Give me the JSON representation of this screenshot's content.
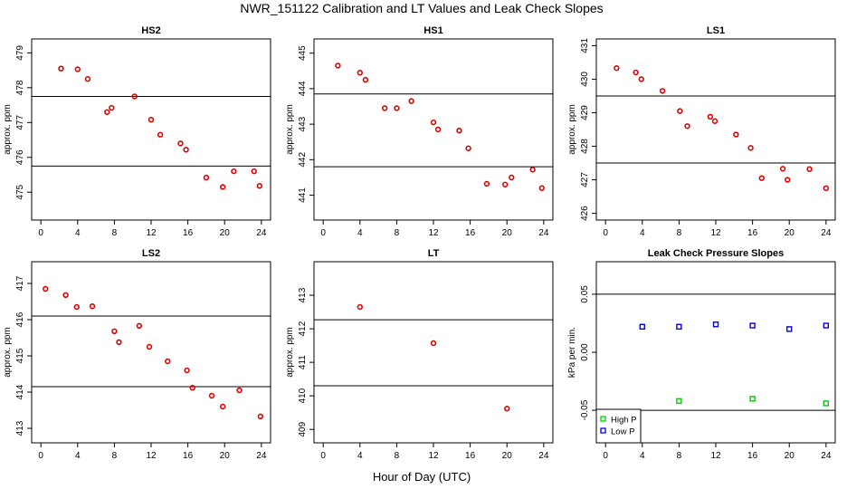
{
  "figure": {
    "title": "NWR_151122  Calibration and LT Values and Leak Check Slopes",
    "xlabel": "Hour of Day (UTC)"
  },
  "chart_data": [
    {
      "type": "scatter",
      "title": "HS2",
      "ylabel": "approx. ppm",
      "xlim": [
        -1,
        25
      ],
      "ylim": [
        474.2,
        479.4
      ],
      "xticks": [
        0,
        4,
        8,
        12,
        16,
        20,
        24
      ],
      "yticks": [
        475,
        476,
        477,
        478,
        479
      ],
      "hlines": [
        477.75,
        475.75
      ],
      "series": [
        {
          "color": "#e00000",
          "marker": "circle",
          "x": [
            2.2,
            4.0,
            5.1,
            7.2,
            7.7,
            10.2,
            12.0,
            13.0,
            15.2,
            15.8,
            18.0,
            19.8,
            21.0,
            23.2,
            23.8
          ],
          "y": [
            478.55,
            478.53,
            478.25,
            477.3,
            477.42,
            477.75,
            477.08,
            476.65,
            476.4,
            476.22,
            475.42,
            475.15,
            475.6,
            475.6,
            475.18
          ]
        }
      ]
    },
    {
      "type": "scatter",
      "title": "HS1",
      "ylabel": "approx. ppm",
      "xlim": [
        -1,
        25
      ],
      "ylim": [
        440.3,
        445.4
      ],
      "xticks": [
        0,
        4,
        8,
        12,
        16,
        20,
        24
      ],
      "yticks": [
        441,
        442,
        443,
        444,
        445
      ],
      "hlines": [
        443.85,
        441.8
      ],
      "series": [
        {
          "color": "#e00000",
          "marker": "circle",
          "x": [
            1.6,
            4.0,
            4.6,
            6.7,
            8.0,
            9.6,
            12.0,
            12.5,
            14.8,
            15.8,
            17.8,
            19.8,
            20.5,
            22.8,
            23.8
          ],
          "y": [
            444.65,
            444.45,
            444.25,
            443.45,
            443.45,
            443.65,
            443.05,
            442.85,
            442.82,
            442.32,
            441.32,
            441.3,
            441.5,
            441.72,
            441.2
          ]
        }
      ]
    },
    {
      "type": "scatter",
      "title": "LS1",
      "ylabel": "approx. ppm",
      "xlim": [
        -1,
        25
      ],
      "ylim": [
        425.8,
        431.2
      ],
      "xticks": [
        0,
        4,
        8,
        12,
        16,
        20,
        24
      ],
      "yticks": [
        426,
        427,
        428,
        429,
        430,
        431
      ],
      "hlines": [
        429.5,
        427.5
      ],
      "series": [
        {
          "color": "#e00000",
          "marker": "circle",
          "x": [
            1.2,
            3.3,
            3.9,
            6.2,
            8.1,
            8.9,
            11.4,
            11.9,
            14.2,
            15.8,
            17.0,
            19.3,
            19.8,
            22.2,
            24.0
          ],
          "y": [
            430.33,
            430.2,
            430.0,
            429.65,
            429.05,
            428.6,
            428.88,
            428.75,
            428.35,
            427.95,
            427.05,
            427.33,
            427.0,
            427.32,
            426.75
          ]
        }
      ]
    },
    {
      "type": "scatter",
      "title": "LS2",
      "ylabel": "approx. ppm",
      "xlim": [
        -1,
        25
      ],
      "ylim": [
        412.6,
        417.6
      ],
      "xticks": [
        0,
        4,
        8,
        12,
        16,
        20,
        24
      ],
      "yticks": [
        413,
        414,
        415,
        416,
        417
      ],
      "hlines": [
        416.1,
        414.15
      ],
      "series": [
        {
          "color": "#e00000",
          "marker": "circle",
          "x": [
            0.5,
            2.7,
            3.9,
            5.6,
            8.0,
            8.5,
            10.7,
            11.8,
            13.8,
            15.9,
            16.5,
            18.6,
            19.8,
            21.6,
            23.9
          ],
          "y": [
            416.85,
            416.68,
            416.35,
            416.37,
            415.68,
            415.38,
            415.83,
            415.25,
            414.85,
            414.6,
            414.12,
            413.9,
            413.6,
            414.05,
            413.33
          ]
        }
      ]
    },
    {
      "type": "scatter",
      "title": "LT",
      "ylabel": "approx. ppm",
      "xlim": [
        -1,
        25
      ],
      "ylim": [
        408.6,
        414.0
      ],
      "xticks": [
        0,
        4,
        8,
        12,
        16,
        20,
        24
      ],
      "yticks": [
        409,
        410,
        411,
        412,
        413
      ],
      "hlines": [
        412.27,
        410.3
      ],
      "series": [
        {
          "color": "#e00000",
          "marker": "circle",
          "x": [
            4.0,
            12.0,
            20.0
          ],
          "y": [
            412.65,
            411.57,
            409.62
          ]
        }
      ]
    },
    {
      "type": "scatter",
      "title": "Leak Check Pressure Slopes",
      "ylabel": "kPa per min.",
      "xlim": [
        -1,
        25
      ],
      "ylim": [
        -0.078,
        0.078
      ],
      "xticks": [
        0,
        4,
        8,
        12,
        16,
        20,
        24
      ],
      "yticks": [
        -0.05,
        0.0,
        0.05
      ],
      "yticklabels": [
        "-0.05",
        "0.00",
        "0.05"
      ],
      "hlines": [
        0.05,
        -0.05
      ],
      "legend": {
        "location": "bottom-left"
      },
      "series": [
        {
          "name": "High P",
          "color": "#00cc00",
          "marker": "square",
          "x": [
            8,
            16,
            24
          ],
          "y": [
            -0.042,
            -0.04,
            -0.044
          ]
        },
        {
          "name": "Low P",
          "color": "#0000ee",
          "marker": "square",
          "x": [
            4,
            8,
            12,
            16,
            20,
            24
          ],
          "y": [
            0.022,
            0.022,
            0.024,
            0.023,
            0.02,
            0.023
          ]
        }
      ]
    }
  ]
}
